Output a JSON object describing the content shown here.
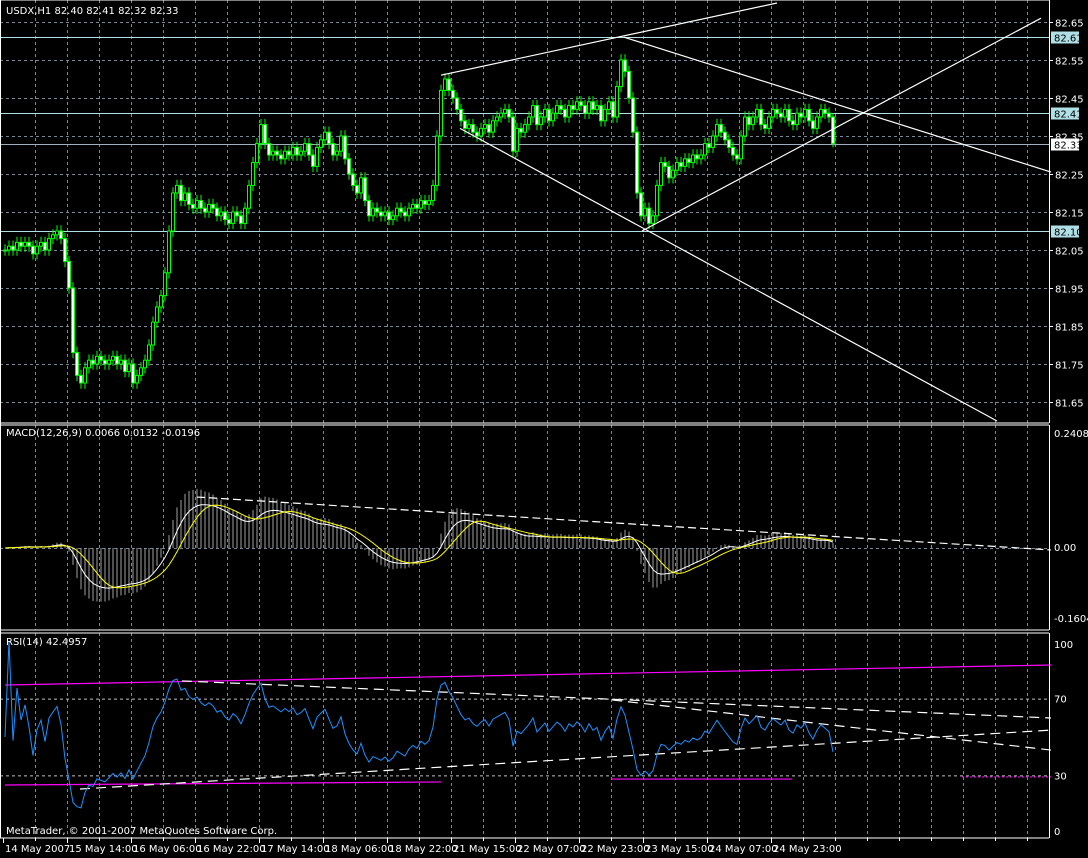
{
  "header": {
    "main": "USDX,H1  82.40 82.41 82.32 82.33",
    "macd": "MACD(12,26,9) 0.0066 0.0132 -0.0196",
    "rsi": "RSI(14) 42.4957",
    "copyright": "MetaTrader, © 2001-2007 MetaQuotes Software Corp."
  },
  "colors": {
    "background": "#000000",
    "candle": "#00ff00",
    "grid": "#778899",
    "hline": "#b0e0e6",
    "macd_hist": "#a0a0a0",
    "macd_line": "#ffffff",
    "signal_line": "#ffff00",
    "rsi_line": "#1e90ff",
    "rsi_channel": "#ff00ff",
    "trendline": "#ffffff"
  },
  "chart_data": [
    {
      "type": "candlestick",
      "title": "USDX,H1",
      "ylim": [
        81.6,
        82.7
      ],
      "yticks": [
        "82.65",
        "82.55",
        "82.45",
        "82.35",
        "82.25",
        "82.15",
        "82.05",
        "81.95",
        "81.85",
        "81.75",
        "81.65"
      ],
      "xticks": [
        "14 May 2007",
        "15 May 14:00",
        "16 May 06:00",
        "16 May 22:00",
        "17 May 14:00",
        "18 May 06:00",
        "18 May 22:00",
        "21 May 15:00",
        "22 May 07:00",
        "22 May 23:00",
        "23 May 15:00",
        "24 May 07:00",
        "24 May 23:00"
      ],
      "grid": true,
      "closes": [
        82.05,
        82.06,
        82.05,
        82.07,
        82.06,
        82.07,
        82.06,
        82.04,
        82.06,
        82.07,
        82.05,
        82.08,
        82.09,
        82.1,
        82.08,
        82.02,
        81.95,
        81.78,
        81.72,
        81.7,
        81.74,
        81.76,
        81.75,
        81.77,
        81.76,
        81.75,
        81.76,
        81.77,
        81.75,
        81.76,
        81.73,
        81.75,
        81.7,
        81.72,
        81.74,
        81.76,
        81.8,
        81.86,
        81.9,
        81.93,
        81.99,
        82.1,
        82.2,
        82.22,
        82.18,
        82.2,
        82.17,
        82.16,
        82.18,
        82.16,
        82.15,
        82.17,
        82.16,
        82.14,
        82.15,
        82.13,
        82.12,
        82.15,
        82.14,
        82.12,
        82.16,
        82.22,
        82.28,
        82.33,
        82.38,
        82.33,
        82.3,
        82.31,
        82.3,
        82.29,
        82.31,
        82.3,
        82.32,
        82.3,
        82.31,
        82.33,
        82.3,
        82.27,
        82.32,
        82.34,
        82.36,
        82.33,
        82.3,
        82.31,
        82.35,
        82.29,
        82.25,
        82.22,
        82.2,
        82.24,
        82.18,
        82.14,
        82.16,
        82.15,
        82.14,
        82.15,
        82.13,
        82.14,
        82.16,
        82.15,
        82.14,
        82.16,
        82.17,
        82.16,
        82.18,
        82.17,
        82.18,
        82.22,
        82.35,
        82.47,
        82.5,
        82.47,
        82.45,
        82.42,
        82.39,
        82.37,
        82.38,
        82.36,
        82.35,
        82.37,
        82.38,
        82.36,
        82.39,
        82.4,
        82.41,
        82.42,
        82.4,
        82.31,
        82.37,
        82.36,
        82.38,
        82.4,
        82.43,
        82.38,
        82.4,
        82.42,
        82.39,
        82.41,
        82.43,
        82.42,
        82.4,
        82.43,
        82.42,
        82.44,
        82.43,
        82.41,
        82.44,
        82.42,
        82.43,
        82.39,
        82.42,
        82.44,
        82.4,
        82.48,
        82.55,
        82.52,
        82.45,
        82.36,
        82.2,
        82.14,
        82.16,
        82.12,
        82.14,
        82.22,
        82.28,
        82.27,
        82.24,
        82.26,
        82.28,
        82.27,
        82.29,
        82.28,
        82.3,
        82.29,
        82.3,
        82.33,
        82.32,
        82.35,
        82.38,
        82.36,
        82.34,
        82.32,
        82.3,
        82.29,
        82.35,
        82.4,
        82.38,
        82.4,
        82.42,
        82.38,
        82.37,
        82.4,
        82.42,
        82.41,
        82.4,
        82.42,
        82.39,
        82.38,
        82.41,
        82.4,
        82.42,
        82.39,
        82.37,
        82.4,
        82.42,
        82.41,
        82.4,
        82.33
      ],
      "last_ohlc": {
        "open": 82.4,
        "high": 82.41,
        "low": 82.32,
        "close": 82.33
      },
      "horizontal_lines": [
        {
          "price": 82.61,
          "label": "82.61",
          "highlight": "#b0e0e6"
        },
        {
          "price": 82.41,
          "label": "82.41",
          "highlight": "#b0e0e6"
        },
        {
          "price": 82.33,
          "label": "82.33",
          "highlight": "#ffffff"
        },
        {
          "price": 82.1,
          "label": "82.10",
          "highlight": "#b0e0e6"
        }
      ],
      "trendlines": [
        {
          "from": [
            109,
            82.51
          ],
          "to": [
            193,
            82.7
          ]
        },
        {
          "from": [
            154.75,
            82.61
          ],
          "to": [
            261.5,
            82.255
          ]
        },
        {
          "from": [
            113.75,
            82.37
          ],
          "to": [
            248,
            81.6
          ]
        },
        {
          "from": [
            159.25,
            82.1
          ],
          "to": [
            259,
            82.66
          ]
        }
      ]
    },
    {
      "type": "macd",
      "title": "MACD(12,26,9)",
      "params": [
        12,
        26,
        9
      ],
      "values": {
        "main": 0.0066,
        "signal": 0.0132,
        "diff": -0.0196
      },
      "ylim": [
        -0.1604,
        0.2408
      ],
      "yticks": [
        "0.2408",
        "0.00",
        "-0.1604"
      ],
      "trendlines": [
        {
          "from": [
            48,
            0.104
          ],
          "to": [
            261.5,
            -0.004
          ],
          "dashed": true
        }
      ]
    },
    {
      "type": "rsi",
      "title": "RSI(14)",
      "period": 14,
      "value": 42.4957,
      "ylim": [
        0,
        100
      ],
      "yticks": [
        "100",
        "70",
        "30",
        "0"
      ],
      "levels": [
        70,
        30
      ],
      "channel_lines": [
        {
          "from": [
            0,
            77.1
          ],
          "to": [
            261.5,
            87.5
          ],
          "style": "solid"
        },
        {
          "from": [
            0,
            25.0
          ],
          "to": [
            109,
            26.6
          ],
          "style": "solid"
        },
        {
          "from": [
            151.75,
            28.1
          ],
          "to": [
            196.75,
            28.1
          ],
          "style": "solid"
        },
        {
          "from": [
            239.25,
            29.2
          ],
          "to": [
            261.5,
            29.2
          ],
          "style": "dotted"
        }
      ],
      "trendlines": [
        {
          "from": [
            44.25,
            79.2
          ],
          "to": [
            261.5,
            59.9
          ]
        },
        {
          "from": [
            151.75,
            69.3
          ],
          "to": [
            261.5,
            43.2
          ]
        },
        {
          "from": [
            18.75,
            22.9
          ],
          "to": [
            261.5,
            53.6
          ]
        }
      ]
    }
  ]
}
